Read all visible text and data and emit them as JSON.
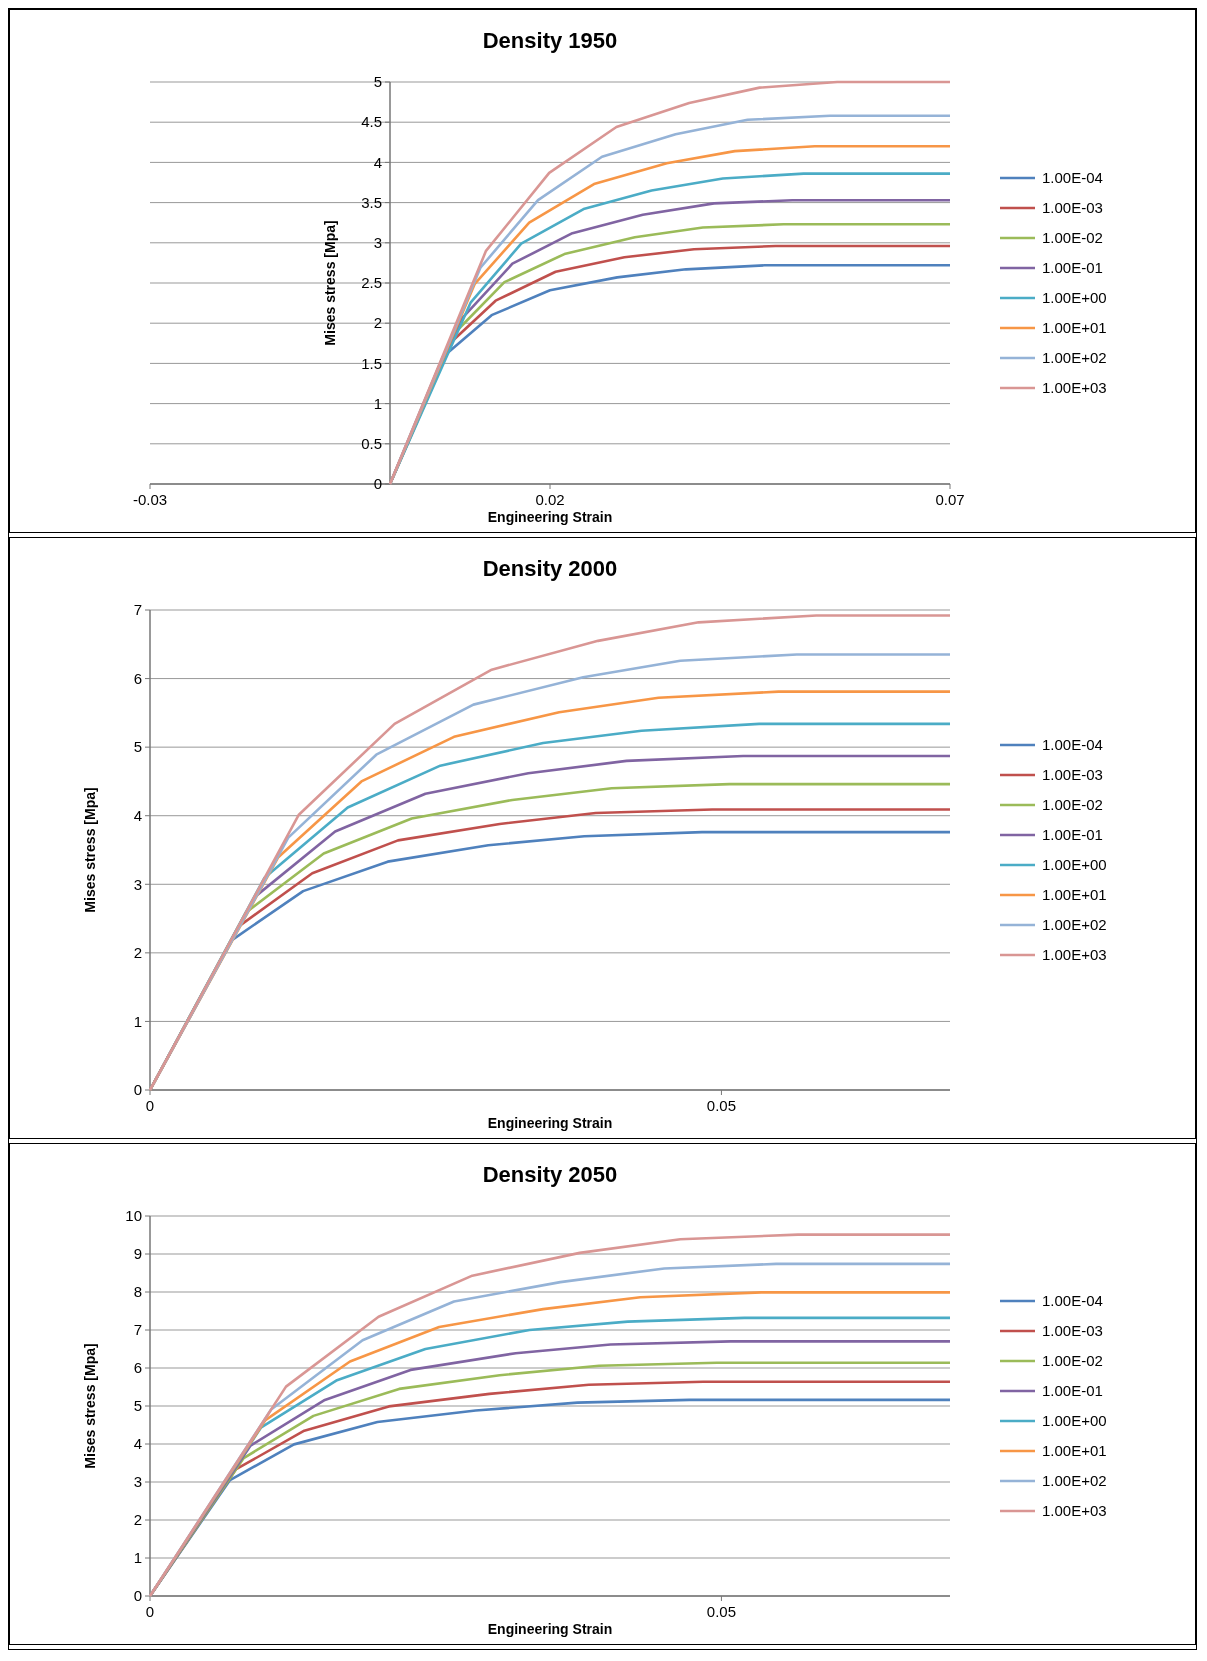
{
  "chart_data": [
    {
      "type": "line",
      "title": "Density 1950",
      "xlabel": "Engineering Strain",
      "ylabel": "Mises stress [Mpa]",
      "xlim": [
        -0.03,
        0.07
      ],
      "xticks": [
        -0.03,
        0.02,
        0.07
      ],
      "ylim": [
        0,
        5
      ],
      "yticks": [
        0,
        0.5,
        1,
        1.5,
        2,
        2.5,
        3,
        3.5,
        4,
        4.5,
        5
      ],
      "grid": "y",
      "legend": "right",
      "marker": "none",
      "line_style": "solid",
      "series": [
        {
          "name": "1.00E-04",
          "color": "#4f81bd",
          "x": [
            0,
            0.0066,
            0.0127,
            0.02,
            0.0284,
            0.037,
            0.0468,
            0.07
          ],
          "values": [
            0,
            1.58,
            2.1,
            2.41,
            2.57,
            2.67,
            2.72,
            2.72
          ]
        },
        {
          "name": "1.00E-03",
          "color": "#c0504d",
          "x": [
            0,
            0.0075,
            0.0132,
            0.0207,
            0.0293,
            0.038,
            0.0482,
            0.07
          ],
          "values": [
            0,
            1.75,
            2.28,
            2.64,
            2.82,
            2.92,
            2.96,
            2.96
          ]
        },
        {
          "name": "1.00E-02",
          "color": "#9bbb59",
          "x": [
            0,
            0.0083,
            0.0143,
            0.0218,
            0.0306,
            0.0391,
            0.0492,
            0.07
          ],
          "values": [
            0,
            1.9,
            2.51,
            2.86,
            3.07,
            3.19,
            3.23,
            3.23
          ]
        },
        {
          "name": "1.00E-01",
          "color": "#8064a2",
          "x": [
            0,
            0.009,
            0.0153,
            0.0228,
            0.0316,
            0.0405,
            0.0503,
            0.07
          ],
          "values": [
            0,
            2.06,
            2.74,
            3.12,
            3.35,
            3.49,
            3.53,
            3.53
          ]
        },
        {
          "name": "1.00E+00",
          "color": "#4bacc6",
          "x": [
            0,
            0.0101,
            0.0164,
            0.0242,
            0.0327,
            0.0416,
            0.0517,
            0.07
          ],
          "values": [
            0,
            2.26,
            2.99,
            3.42,
            3.65,
            3.8,
            3.86,
            3.86
          ]
        },
        {
          "name": "1.00E+01",
          "color": "#f79646",
          "x": [
            0,
            0.0106,
            0.0174,
            0.0255,
            0.0346,
            0.0431,
            0.0531,
            0.07
          ],
          "values": [
            0,
            2.49,
            3.25,
            3.73,
            3.99,
            4.14,
            4.2,
            4.2
          ]
        },
        {
          "name": "1.00E+02",
          "color": "#95b3d7",
          "x": [
            0,
            0.0113,
            0.0185,
            0.0265,
            0.0357,
            0.0447,
            0.055,
            0.07
          ],
          "values": [
            0,
            2.69,
            3.53,
            4.07,
            4.35,
            4.53,
            4.58,
            4.58
          ]
        },
        {
          "name": "1.00E+03",
          "color": "#d99694",
          "x": [
            0,
            0.012,
            0.0199,
            0.0283,
            0.0374,
            0.0462,
            0.0559,
            0.07
          ],
          "values": [
            0,
            2.9,
            3.87,
            4.44,
            4.74,
            4.93,
            5.0,
            5.0
          ]
        }
      ]
    },
    {
      "type": "line",
      "title": "Density 2000",
      "xlabel": "Engineering Strain",
      "ylabel": "Mises stress [Mpa]",
      "xlim": [
        0,
        0.07
      ],
      "xticks": [
        0,
        0.05
      ],
      "ylim": [
        0,
        7
      ],
      "yticks": [
        0,
        1,
        2,
        3,
        4,
        5,
        6,
        7
      ],
      "grid": "y",
      "legend": "right",
      "marker": "none",
      "line_style": "solid",
      "series": [
        {
          "name": "1.00E-04",
          "color": "#4f81bd",
          "x": [
            0,
            0.0072,
            0.0134,
            0.0208,
            0.0296,
            0.038,
            0.0483,
            0.07
          ],
          "values": [
            0,
            2.19,
            2.9,
            3.33,
            3.57,
            3.7,
            3.76,
            3.76
          ]
        },
        {
          "name": "1.00E-03",
          "color": "#c0504d",
          "x": [
            0,
            0.0078,
            0.0142,
            0.0217,
            0.0306,
            0.039,
            0.0492,
            0.07
          ],
          "values": [
            0,
            2.39,
            3.16,
            3.64,
            3.88,
            4.04,
            4.09,
            4.09
          ]
        },
        {
          "name": "1.00E-02",
          "color": "#9bbb59",
          "x": [
            0,
            0.0084,
            0.0152,
            0.0229,
            0.0317,
            0.0404,
            0.0507,
            0.07
          ],
          "values": [
            0,
            2.59,
            3.45,
            3.96,
            4.23,
            4.4,
            4.46,
            4.46
          ]
        },
        {
          "name": "1.00E-01",
          "color": "#8064a2",
          "x": [
            0,
            0.0092,
            0.0162,
            0.0241,
            0.0331,
            0.0417,
            0.0519,
            0.07
          ],
          "values": [
            0,
            2.82,
            3.77,
            4.32,
            4.62,
            4.8,
            4.87,
            4.87
          ]
        },
        {
          "name": "1.00E+00",
          "color": "#4bacc6",
          "x": [
            0,
            0.01,
            0.0173,
            0.0254,
            0.0344,
            0.043,
            0.0533,
            0.07
          ],
          "values": [
            0,
            3.09,
            4.12,
            4.73,
            5.06,
            5.24,
            5.34,
            5.34
          ]
        },
        {
          "name": "1.00E+01",
          "color": "#f79646",
          "x": [
            0,
            0.0112,
            0.0185,
            0.0266,
            0.0358,
            0.0445,
            0.055,
            0.07
          ],
          "values": [
            0,
            3.39,
            4.5,
            5.15,
            5.51,
            5.72,
            5.81,
            5.81
          ]
        },
        {
          "name": "1.00E+02",
          "color": "#95b3d7",
          "x": [
            0,
            0.0121,
            0.0198,
            0.0283,
            0.0379,
            0.0464,
            0.0566,
            0.07
          ],
          "values": [
            0,
            3.68,
            4.89,
            5.62,
            6.02,
            6.26,
            6.35,
            6.35
          ]
        },
        {
          "name": "1.00E+03",
          "color": "#d99694",
          "x": [
            0,
            0.013,
            0.0214,
            0.0299,
            0.0392,
            0.048,
            0.0583,
            0.07
          ],
          "values": [
            0,
            4.01,
            5.34,
            6.13,
            6.55,
            6.82,
            6.92,
            6.92
          ]
        }
      ]
    },
    {
      "type": "line",
      "title": "Density 2050",
      "xlabel": "Engineering Strain",
      "ylabel": "Mises stress [Mpa]",
      "xlim": [
        0,
        0.07
      ],
      "xticks": [
        0,
        0.05
      ],
      "ylim": [
        0,
        10
      ],
      "yticks": [
        0,
        1,
        2,
        3,
        4,
        5,
        6,
        7,
        8,
        9,
        10
      ],
      "grid": "y",
      "legend": "right",
      "marker": "none",
      "line_style": "solid",
      "series": [
        {
          "name": "1.00E-04",
          "color": "#4f81bd",
          "x": [
            0,
            0.007,
            0.0126,
            0.0199,
            0.0285,
            0.0374,
            0.0472,
            0.07
          ],
          "values": [
            0,
            3.05,
            3.99,
            4.58,
            4.88,
            5.09,
            5.16,
            5.16
          ]
        },
        {
          "name": "1.00E-03",
          "color": "#c0504d",
          "x": [
            0,
            0.0075,
            0.0135,
            0.0209,
            0.0297,
            0.0384,
            0.0484,
            0.07
          ],
          "values": [
            0,
            3.33,
            4.35,
            4.99,
            5.32,
            5.56,
            5.64,
            5.64
          ]
        },
        {
          "name": "1.00E-02",
          "color": "#9bbb59",
          "x": [
            0,
            0.0082,
            0.0143,
            0.0218,
            0.0306,
            0.0393,
            0.0496,
            0.07
          ],
          "values": [
            0,
            3.63,
            4.74,
            5.45,
            5.81,
            6.06,
            6.14,
            6.14
          ]
        },
        {
          "name": "1.00E-01",
          "color": "#8064a2",
          "x": [
            0,
            0.0088,
            0.0153,
            0.0228,
            0.032,
            0.0403,
            0.0508,
            0.07
          ],
          "values": [
            0,
            3.96,
            5.16,
            5.95,
            6.39,
            6.62,
            6.7,
            6.7
          ]
        },
        {
          "name": "1.00E+00",
          "color": "#4bacc6",
          "x": [
            0,
            0.0097,
            0.0163,
            0.0241,
            0.0332,
            0.0418,
            0.052,
            0.07
          ],
          "values": [
            0,
            4.43,
            5.67,
            6.5,
            7.0,
            7.22,
            7.32,
            7.32
          ]
        },
        {
          "name": "1.00E+01",
          "color": "#f79646",
          "x": [
            0,
            0.0101,
            0.0175,
            0.0253,
            0.0344,
            0.0429,
            0.0535,
            0.07
          ],
          "values": [
            0,
            4.63,
            6.17,
            7.08,
            7.55,
            7.86,
            7.99,
            7.99
          ]
        },
        {
          "name": "1.00E+02",
          "color": "#95b3d7",
          "x": [
            0,
            0.0106,
            0.0186,
            0.0266,
            0.0359,
            0.045,
            0.0548,
            0.07
          ],
          "values": [
            0,
            4.91,
            6.73,
            7.75,
            8.26,
            8.62,
            8.74,
            8.74
          ]
        },
        {
          "name": "1.00E+03",
          "color": "#d99694",
          "x": [
            0,
            0.0119,
            0.02,
            0.0282,
            0.0376,
            0.0464,
            0.0567,
            0.07
          ],
          "values": [
            0,
            5.51,
            7.35,
            8.43,
            9.03,
            9.39,
            9.51,
            9.51
          ]
        }
      ]
    }
  ]
}
